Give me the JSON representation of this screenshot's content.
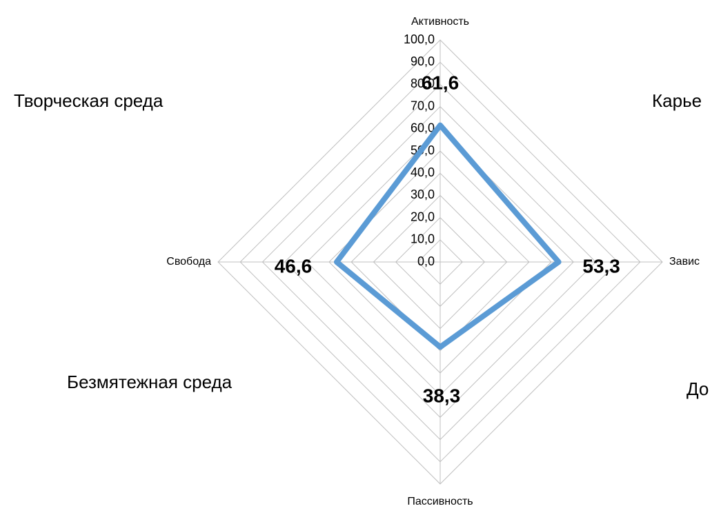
{
  "chart_data": {
    "type": "radar",
    "categories": [
      "Активность",
      "Завис",
      "Пассивность",
      "Свобода"
    ],
    "series": [
      {
        "name": null,
        "color": "#5b9bd5",
        "values": [
          61.6,
          53.3,
          38.3,
          46.6
        ],
        "value_labels": [
          "61,6",
          "53,3",
          "38,3",
          "46,6"
        ]
      }
    ],
    "rlim": [
      0,
      100
    ],
    "rticks": [
      {
        "value": 0,
        "label": "0,0"
      },
      {
        "value": 10,
        "label": "10,0"
      },
      {
        "value": 20,
        "label": "20,0"
      },
      {
        "value": 30,
        "label": "30,0"
      },
      {
        "value": 40,
        "label": "40,0"
      },
      {
        "value": 50,
        "label": "50,0"
      },
      {
        "value": 60,
        "label": "60,0"
      },
      {
        "value": 70,
        "label": "70,0"
      },
      {
        "value": 80,
        "label": "80,0"
      },
      {
        "value": 90,
        "label": "90,0"
      },
      {
        "value": 100,
        "label": "100,0"
      }
    ],
    "grid": true,
    "annotations": [
      "Творческая среда",
      "Карье",
      "Безмятежная среда",
      "До"
    ]
  }
}
